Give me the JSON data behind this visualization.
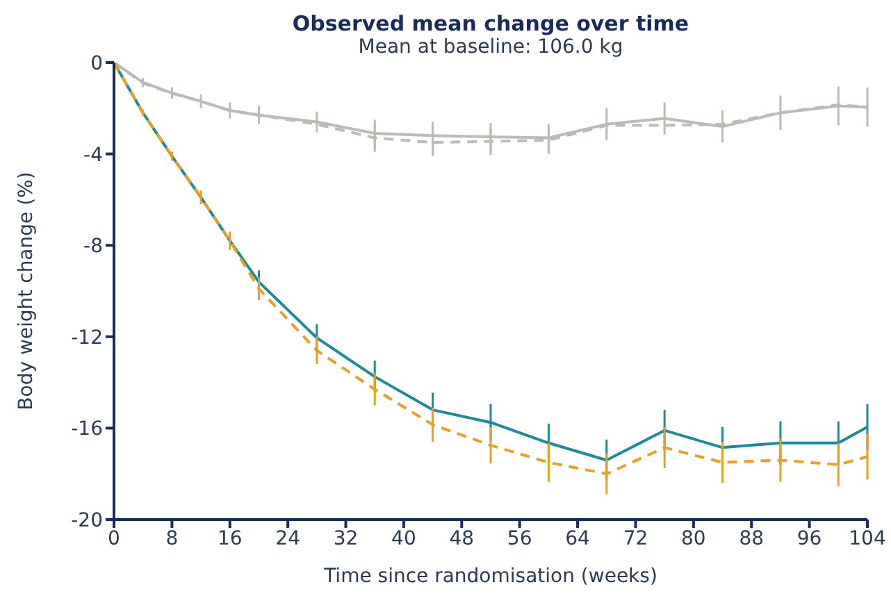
{
  "chart_data": {
    "type": "line",
    "title": "Observed mean change over time",
    "subtitle": "Mean at baseline: 106.0 kg",
    "xlabel": "Time since randomisation (weeks)",
    "ylabel": "Body weight change (%)",
    "x": [
      0,
      4,
      8,
      12,
      16,
      20,
      28,
      36,
      44,
      52,
      60,
      68,
      76,
      84,
      92,
      100,
      104
    ],
    "xlim": [
      0,
      104
    ],
    "xticks": [
      0,
      8,
      16,
      24,
      32,
      40,
      48,
      56,
      64,
      72,
      80,
      88,
      96,
      104
    ],
    "ylim": [
      -20,
      0
    ],
    "yticks": [
      -20,
      -16,
      -12,
      -8,
      -4,
      0
    ],
    "grid": false,
    "legend": false,
    "marker": "none",
    "series": [
      {
        "color": "#bdb9b5",
        "line_style": "solid",
        "values": [
          0,
          -0.87,
          -1.33,
          -1.7,
          -2.1,
          -2.3,
          -2.6,
          -3.1,
          -3.2,
          -3.25,
          -3.3,
          -2.7,
          -2.45,
          -2.8,
          -2.2,
          -1.9,
          -1.95
        ],
        "errors": [
          null,
          0.2,
          0.25,
          0.3,
          0.35,
          0.4,
          0.45,
          0.6,
          0.6,
          0.6,
          0.6,
          0.7,
          0.7,
          0.7,
          0.75,
          0.85,
          0.85
        ]
      },
      {
        "color": "#bdb9b5",
        "line_style": "dashed",
        "values": [
          0,
          -0.9,
          -1.35,
          -1.7,
          -2.1,
          -2.3,
          -2.7,
          -3.3,
          -3.5,
          -3.45,
          -3.4,
          -2.75,
          -2.75,
          -2.7,
          -2.2,
          -1.85,
          -1.95
        ],
        "errors": [
          null,
          null,
          null,
          null,
          null,
          null,
          null,
          0.6,
          0.6,
          0.6,
          0.6,
          null,
          null,
          null,
          null,
          null,
          null
        ]
      },
      {
        "color": "#1b8a9a",
        "line_style": "solid",
        "values": [
          0,
          -2.2,
          -4.1,
          -5.9,
          -7.8,
          -9.6,
          -12.05,
          -13.75,
          -15.2,
          -15.75,
          -16.65,
          -17.4,
          -16.1,
          -16.85,
          -16.65,
          -16.65,
          -15.95
        ],
        "errors": [
          null,
          null,
          null,
          null,
          null,
          0.5,
          0.6,
          0.7,
          0.75,
          0.8,
          0.85,
          0.9,
          0.9,
          0.9,
          0.95,
          0.95,
          1.0
        ]
      },
      {
        "color": "#e8a020",
        "line_style": "dashed",
        "values": [
          0,
          -2.2,
          -4.1,
          -5.9,
          -7.8,
          -9.9,
          -12.6,
          -14.3,
          -15.85,
          -16.75,
          -17.5,
          -18.0,
          -16.85,
          -17.5,
          -17.4,
          -17.6,
          -17.25
        ],
        "errors": [
          null,
          0.15,
          0.2,
          0.3,
          0.4,
          0.5,
          0.6,
          0.7,
          0.75,
          0.8,
          0.85,
          0.9,
          0.9,
          0.9,
          0.95,
          0.95,
          1.0
        ]
      }
    ]
  }
}
